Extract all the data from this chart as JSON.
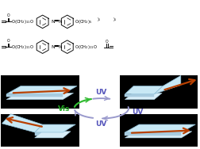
{
  "bg_color": "#ffffff",
  "black_panel_color": "#000000",
  "film_top_color": "#c8e8f5",
  "film_edge_color": "#a8cce0",
  "film_bot_color": "#d8eef8",
  "arrow_orange": "#b84000",
  "arrow_circle_color": "#9999cc",
  "arrow_vis_color": "#33bb33",
  "uv_text_color": "#5555bb",
  "vis_text_color": "#22aa22",
  "uv_label": "UV",
  "vis_label": "Vis"
}
